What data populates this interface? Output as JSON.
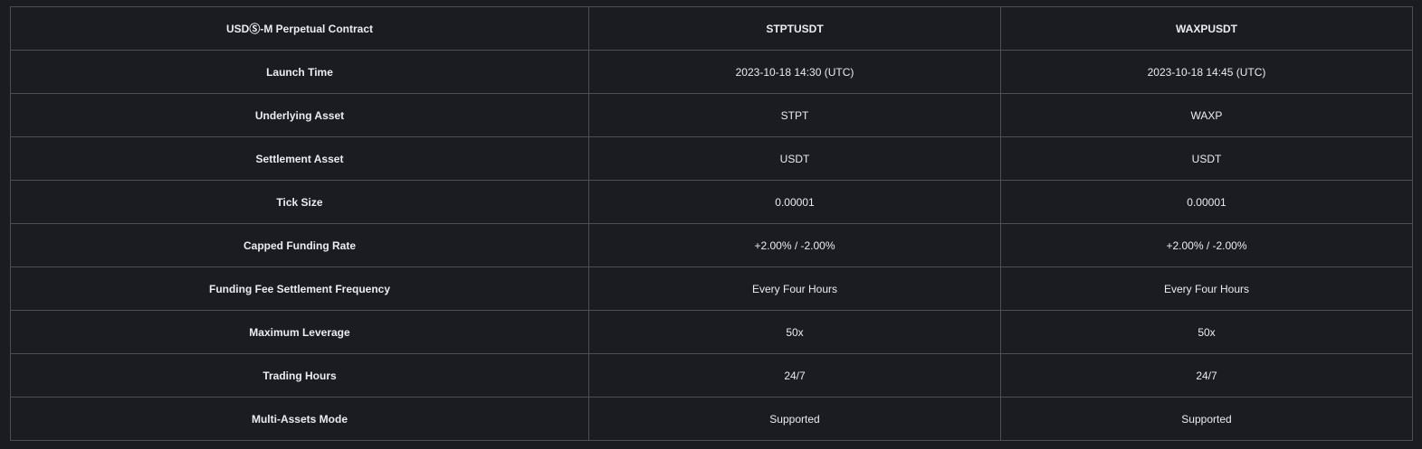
{
  "header": [
    "USDⓈ-M Perpetual Contract",
    "STPTUSDT",
    "WAXPUSDT"
  ],
  "rows": [
    [
      "Launch Time",
      "2023-10-18 14:30 (UTC)",
      "2023-10-18 14:45 (UTC)"
    ],
    [
      "Underlying Asset",
      "STPT",
      "WAXP"
    ],
    [
      "Settlement Asset",
      "USDT",
      "USDT"
    ],
    [
      "Tick Size",
      "0.00001",
      "0.00001"
    ],
    [
      "Capped Funding Rate",
      "+2.00% / -2.00%",
      "+2.00% / -2.00%"
    ],
    [
      "Funding Fee Settlement Frequency",
      "Every Four Hours",
      "Every Four Hours"
    ],
    [
      "Maximum Leverage",
      "50x",
      "50x"
    ],
    [
      "Trading Hours",
      "24/7",
      "24/7"
    ],
    [
      "Multi-Assets Mode",
      "Supported",
      "Supported"
    ]
  ]
}
